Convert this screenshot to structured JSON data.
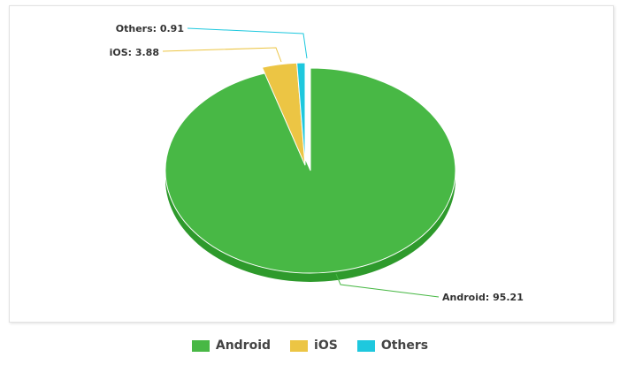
{
  "chart_data": {
    "type": "pie",
    "style": "3d",
    "title": "",
    "slices": [
      {
        "label": "Android",
        "value": 95.21,
        "color": "#48b845",
        "side": "#2e9a2c"
      },
      {
        "label": "iOS",
        "value": 3.88,
        "color": "#ecc544",
        "side": "#c9a22a"
      },
      {
        "label": "Others",
        "value": 0.91,
        "color": "#1ec8de",
        "side": "#139fb1"
      }
    ],
    "data_labels": [
      "Android: 95.21",
      "iOS: 3.88",
      "Others: 0.91"
    ],
    "legend_placement": "bottom"
  }
}
